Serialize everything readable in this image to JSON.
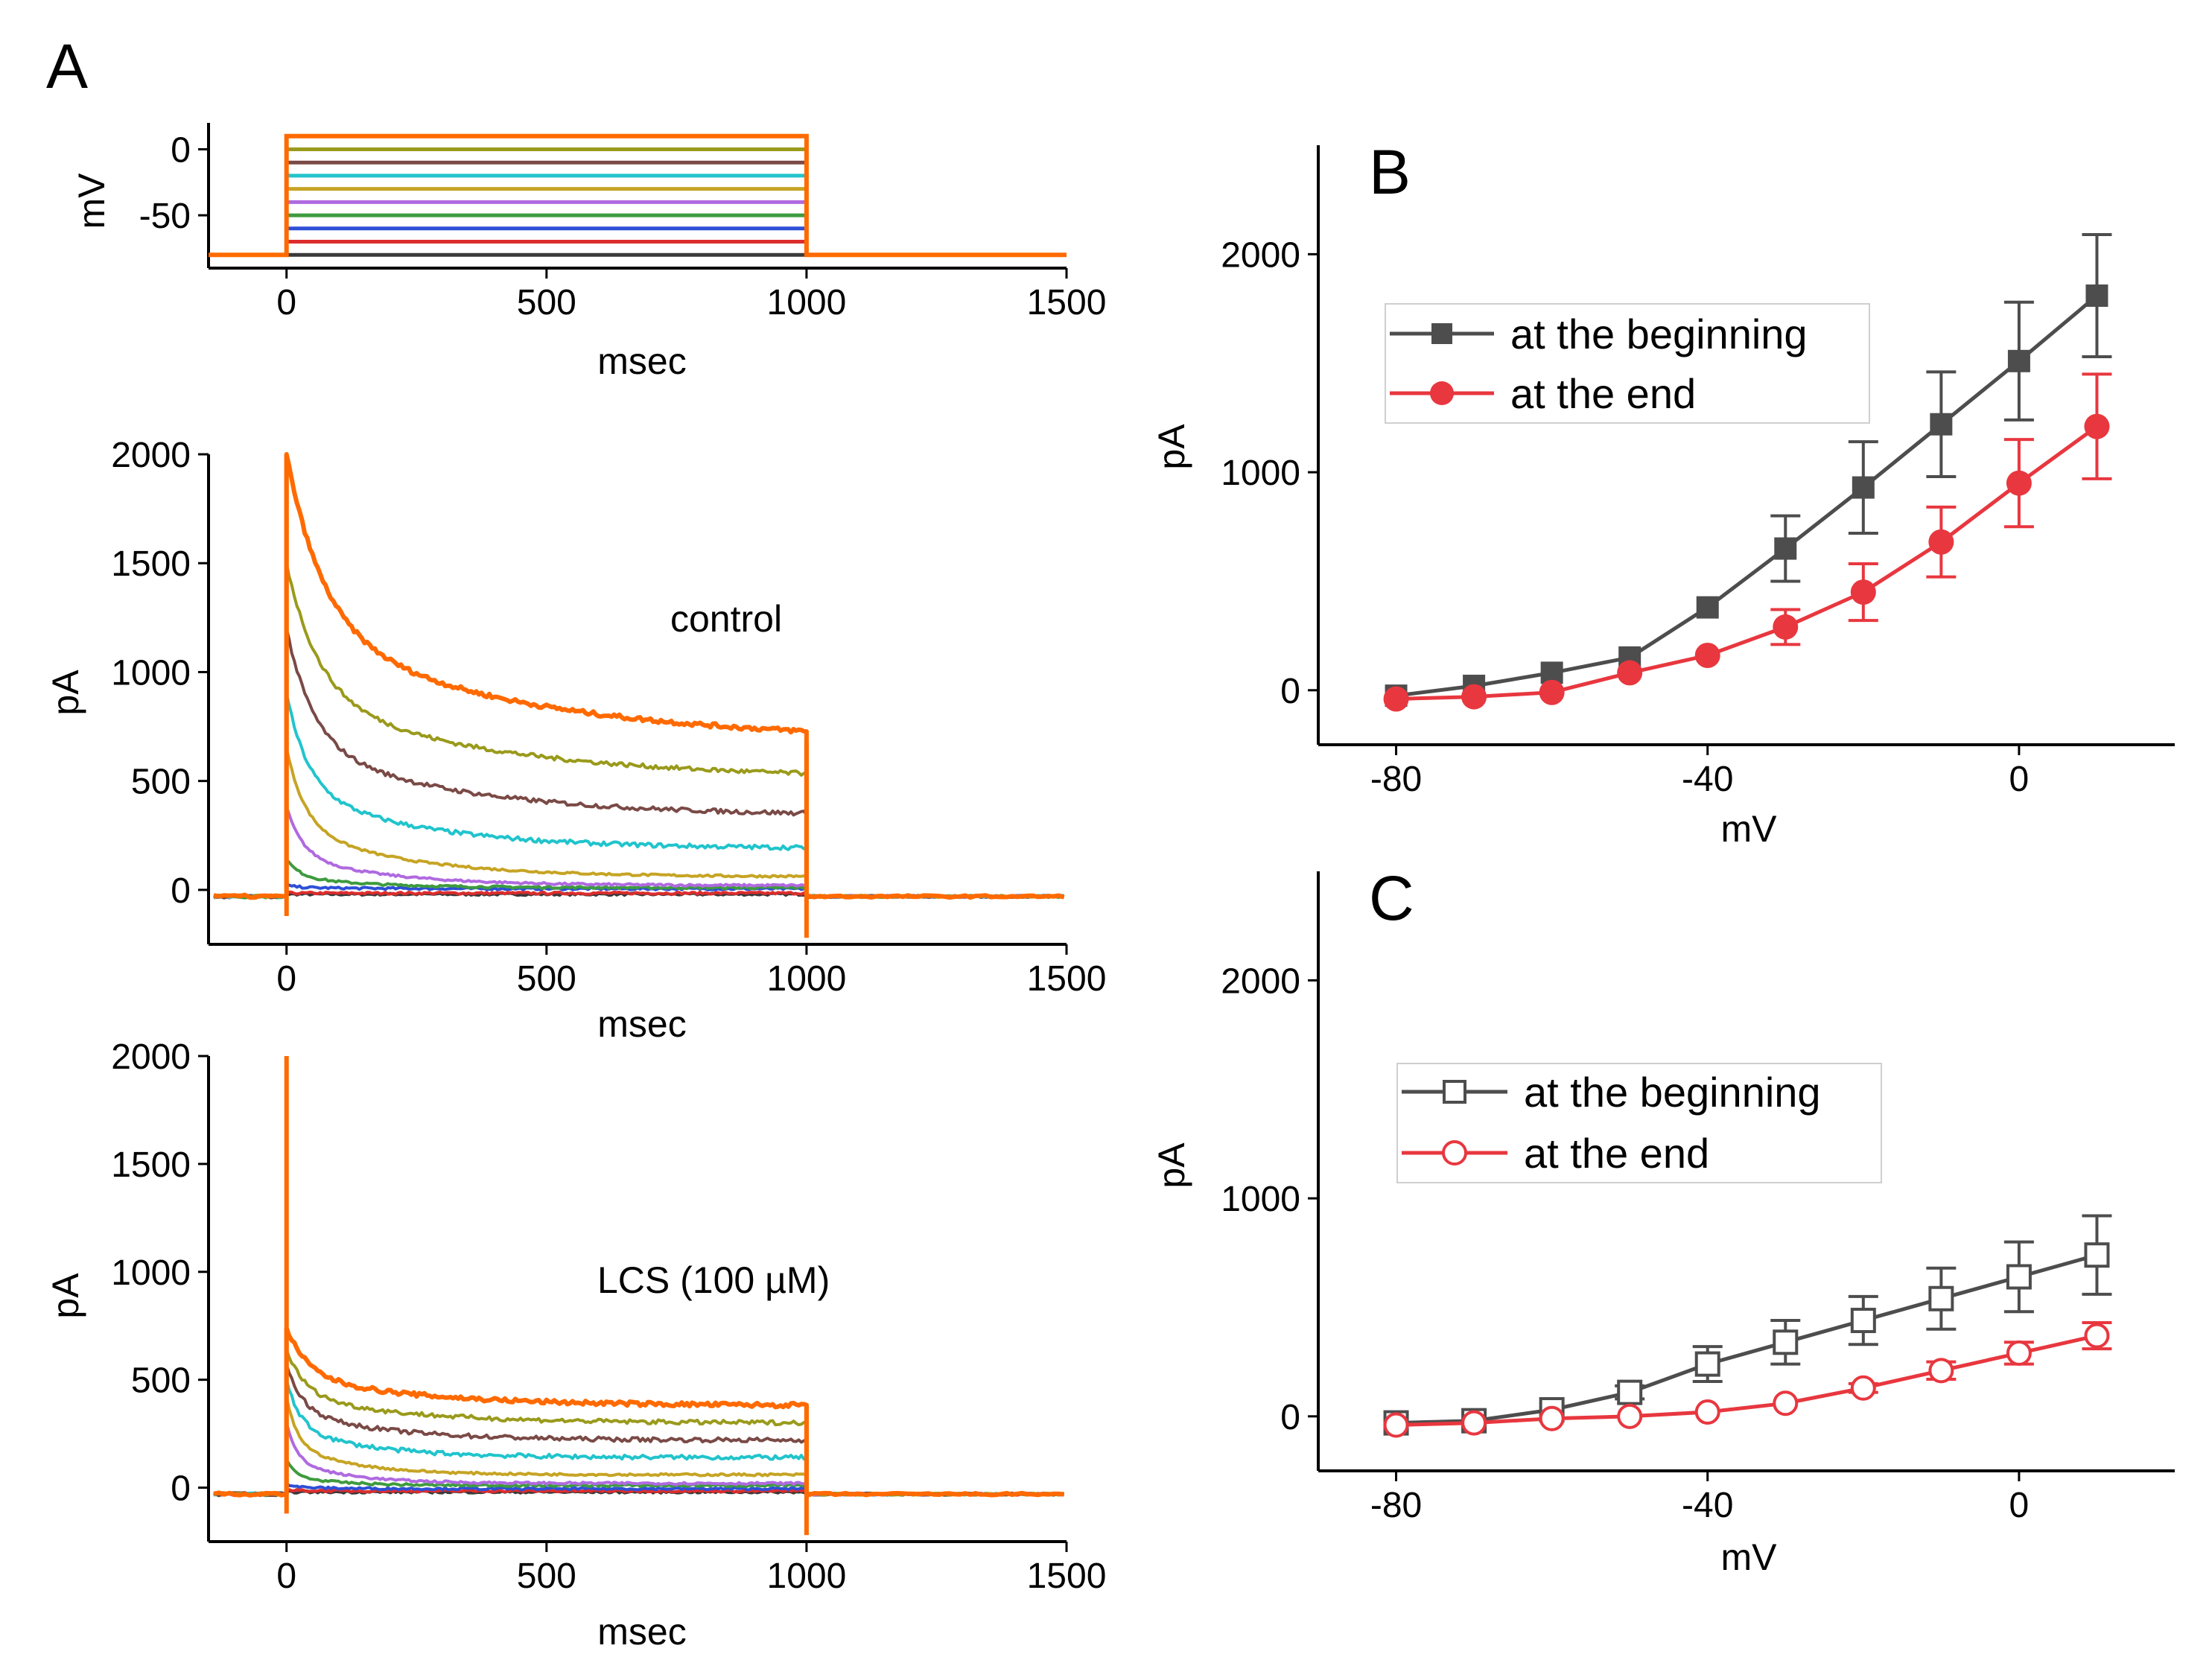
{
  "panel_letters": [
    "A",
    "B",
    "C"
  ],
  "legend_labels": [
    "at the beginning",
    "at the end"
  ],
  "colors": {
    "beginning": "#4d4d4d",
    "end": "#e8373f",
    "traces": [
      "#3a3a3a",
      "#dd2d2d",
      "#2e4fd6",
      "#3e9b3e",
      "#b06ae0",
      "#c6a424",
      "#21c4cc",
      "#7a4a46",
      "#9a9a1c",
      "#ff6a00"
    ]
  },
  "chart_data": [
    {
      "id": "A-protocol",
      "type": "line",
      "title": "",
      "xlabel": "msec",
      "ylabel": "mV",
      "xlim": [
        -150,
        1500
      ],
      "ylim": [
        -90,
        20
      ],
      "xticks": [
        "0",
        "500",
        "1000",
        "1500"
      ],
      "yticks": [
        "0",
        "-50"
      ],
      "holding_mV": -80,
      "step_start_ms": 0,
      "step_end_ms": 1000,
      "step_levels_mV": [
        -80,
        -70,
        -60,
        -50,
        -40,
        -30,
        -20,
        -10,
        0,
        10
      ]
    },
    {
      "id": "A-control",
      "type": "line",
      "title": "",
      "annotation": "control",
      "xlabel": "msec",
      "ylabel": "pA",
      "xlim": [
        -150,
        1500
      ],
      "ylim": [
        -250,
        2000
      ],
      "xticks": [
        "0",
        "500",
        "1000",
        "1500"
      ],
      "yticks": [
        "0",
        "500",
        "1000",
        "1500",
        "2000"
      ],
      "baseline_pA": -30,
      "series": [
        {
          "peak": -20,
          "ss": -20
        },
        {
          "peak": -15,
          "ss": -15
        },
        {
          "peak": 20,
          "ss": 5
        },
        {
          "peak": 140,
          "ss": 10
        },
        {
          "peak": 380,
          "ss": 20
        },
        {
          "peak": 650,
          "ss": 60
        },
        {
          "peak": 900,
          "ss": 190
        },
        {
          "peak": 1200,
          "ss": 340
        },
        {
          "peak": 1500,
          "ss": 510
        },
        {
          "peak": 2000,
          "ss": 680
        }
      ]
    },
    {
      "id": "A-LCS",
      "type": "line",
      "title": "",
      "annotation": "LCS (100 µM)",
      "xlabel": "msec",
      "ylabel": "pA",
      "xlim": [
        -150,
        1500
      ],
      "ylim": [
        -250,
        2000
      ],
      "xticks": [
        "0",
        "500",
        "1000",
        "1500"
      ],
      "yticks": [
        "0",
        "500",
        "1000",
        "1500",
        "2000"
      ],
      "baseline_pA": -30,
      "series": [
        {
          "peak": -20,
          "ss": -20
        },
        {
          "peak": -10,
          "ss": -15
        },
        {
          "peak": 20,
          "ss": -5
        },
        {
          "peak": 130,
          "ss": 10
        },
        {
          "peak": 300,
          "ss": 20
        },
        {
          "peak": 420,
          "ss": 60
        },
        {
          "peak": 500,
          "ss": 140
        },
        {
          "peak": 570,
          "ss": 220
        },
        {
          "peak": 640,
          "ss": 300
        },
        {
          "peak": 740,
          "ss": 380
        }
      ],
      "spike_pA": 2000
    },
    {
      "id": "B",
      "type": "line",
      "title": "",
      "xlabel": "mV",
      "ylabel": "pA",
      "xlim": [
        -90,
        20
      ],
      "ylim": [
        -250,
        2500
      ],
      "xticks": [
        "-80",
        "-40",
        "0"
      ],
      "yticks": [
        "0",
        "1000",
        "2000"
      ],
      "legend": "top-left",
      "marker_fill": true,
      "x": [
        -80,
        -70,
        -60,
        -50,
        -40,
        -30,
        -20,
        -10,
        0,
        10
      ],
      "series": [
        {
          "name": "at the beginning",
          "values": [
            -25,
            20,
            80,
            150,
            380,
            650,
            930,
            1220,
            1510,
            1810
          ],
          "errors": [
            0,
            0,
            0,
            0,
            0,
            150,
            210,
            240,
            270,
            280
          ]
        },
        {
          "name": "at the end",
          "values": [
            -40,
            -30,
            -10,
            80,
            160,
            290,
            450,
            680,
            950,
            1210
          ],
          "errors": [
            0,
            0,
            0,
            0,
            0,
            80,
            130,
            160,
            200,
            240
          ]
        }
      ]
    },
    {
      "id": "C",
      "type": "line",
      "title": "",
      "xlabel": "mV",
      "ylabel": "pA",
      "xlim": [
        -90,
        20
      ],
      "ylim": [
        -250,
        2500
      ],
      "xticks": [
        "-80",
        "-40",
        "0"
      ],
      "yticks": [
        "0",
        "1000",
        "2000"
      ],
      "legend": "middle-left",
      "marker_fill": false,
      "x": [
        -80,
        -70,
        -60,
        -50,
        -40,
        -30,
        -20,
        -10,
        0,
        10
      ],
      "series": [
        {
          "name": "at the beginning",
          "values": [
            -30,
            -20,
            30,
            110,
            240,
            340,
            440,
            540,
            640,
            740
          ],
          "errors": [
            0,
            0,
            0,
            30,
            80,
            100,
            110,
            140,
            160,
            180
          ]
        },
        {
          "name": "at the end",
          "values": [
            -40,
            -30,
            -10,
            0,
            20,
            60,
            130,
            210,
            290,
            370
          ],
          "errors": [
            0,
            0,
            0,
            0,
            0,
            0,
            20,
            40,
            50,
            60
          ]
        }
      ]
    }
  ]
}
